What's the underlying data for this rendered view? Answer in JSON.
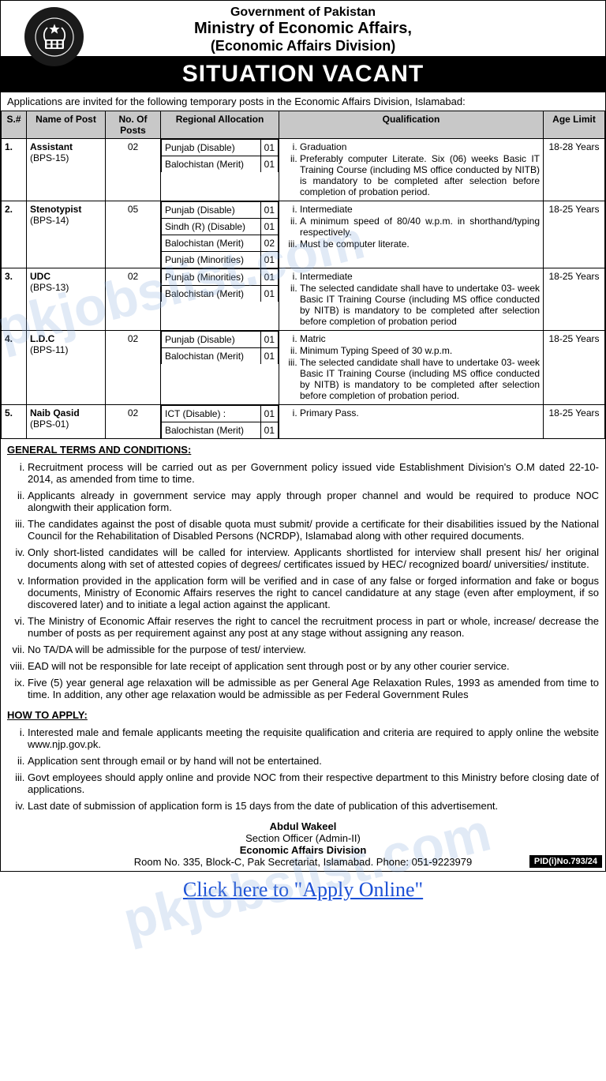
{
  "header": {
    "gov": "Government of Pakistan",
    "ministry": "Ministry of Economic Affairs,",
    "division": "(Economic Affairs Division)",
    "title": "SITUATION VACANT"
  },
  "intro": "Applications are invited for the following temporary posts in the Economic Affairs Division, Islamabad:",
  "columns": {
    "sn": "S.#",
    "name": "Name of Post",
    "num": "No. Of Posts",
    "alloc": "Regional Allocation",
    "qual": "Qualification",
    "age": "Age Limit"
  },
  "posts": [
    {
      "sn": "1.",
      "name": "Assistant",
      "bps": "(BPS-15)",
      "num": "02",
      "alloc": [
        {
          "region": "Punjab (Disable)",
          "n": "01"
        },
        {
          "region": "Balochistan (Merit)",
          "n": "01"
        }
      ],
      "qual": [
        "Graduation",
        "Preferably computer Literate.\nSix (06) weeks Basic IT Training Course (including MS office conducted by NITB) is mandatory to be completed after selection before completion of probation period."
      ],
      "age": "18-28 Years"
    },
    {
      "sn": "2.",
      "name": "Stenotypist",
      "bps": "(BPS-14)",
      "num": "05",
      "alloc": [
        {
          "region": "Punjab (Disable)",
          "n": "01"
        },
        {
          "region": "Sindh (R) (Disable)",
          "n": "01"
        },
        {
          "region": "Balochistan (Merit)",
          "n": "02"
        },
        {
          "region": "Punjab (Minorities)",
          "n": "01"
        }
      ],
      "qual": [
        "Intermediate",
        "A minimum speed of 80/40 w.p.m. in shorthand/typing respectively.",
        "Must be computer literate."
      ],
      "age": "18-25 Years"
    },
    {
      "sn": "3.",
      "name": "UDC",
      "bps": "(BPS-13)",
      "num": "02",
      "alloc": [
        {
          "region": "Punjab (Minorities)",
          "n": "01"
        },
        {
          "region": "Balochistan (Merit)",
          "n": "01"
        }
      ],
      "qual": [
        "Intermediate",
        "The selected candidate shall have to undertake 03- week Basic IT Training Course (including MS office conducted by NITB) is mandatory to be completed after selection before completion of probation period"
      ],
      "age": "18-25 Years"
    },
    {
      "sn": "4.",
      "name": "L.D.C",
      "bps": "(BPS-11)",
      "num": "02",
      "alloc": [
        {
          "region": "Punjab (Disable)",
          "n": "01"
        },
        {
          "region": "Balochistan (Merit)",
          "n": "01"
        }
      ],
      "qual": [
        "Matric",
        "Minimum Typing Speed of 30 w.p.m.",
        "The selected candidate shall have to undertake 03- week Basic IT Training Course (including MS office conducted by NITB) is mandatory to be completed after selection before completion of probation period."
      ],
      "age": "18-25 Years"
    },
    {
      "sn": "5.",
      "name": "Naib Qasid",
      "bps": "(BPS-01)",
      "num": "02",
      "alloc": [
        {
          "region": "ICT (Disable) :",
          "n": "01"
        },
        {
          "region": "Balochistan (Merit)",
          "n": "01"
        }
      ],
      "qual": [
        "Primary Pass."
      ],
      "age": "18-25 Years"
    }
  ],
  "terms_heading": "GENERAL TERMS AND CONDITIONS:",
  "terms": [
    "Recruitment process will be carried out as per Government policy issued vide Establishment Division's O.M dated 22-10-2014, as amended from time to time.",
    "Applicants already in government service may apply through proper channel and would be required to produce NOC alongwith their application form.",
    "The candidates against the post of disable quota must submit/ provide a certificate for their disabilities issued by the National Council for the Rehabilitation of Disabled Persons (NCRDP), Islamabad along with other required documents.",
    "Only short-listed candidates will be called for interview.  Applicants shortlisted for interview shall present his/ her original documents along with set of attested copies of degrees/ certificates issued by HEC/ recognized board/ universities/ institute.",
    "Information provided in the application form will be verified and in case of any false or forged information and fake or bogus documents, Ministry of Economic Affairs reserves the right to cancel candidature at any stage (even after employment, if so discovered later) and to initiate a legal action against the applicant.",
    "The Ministry of Economic Affair reserves the right to cancel the recruitment process in part or whole, increase/ decrease the number of posts as per requirement against any post at any stage without assigning any reason.",
    "No TA/DA will be admissible for the purpose of test/ interview.",
    "EAD will not be responsible for late receipt of application sent through post or by any other courier service.",
    "Five (5) year general age relaxation will be admissible as per General Age Relaxation Rules, 1993 as amended from time to time. In addition, any other age relaxation would be admissible as per Federal Government Rules"
  ],
  "apply_heading": "HOW TO APPLY:",
  "apply": [
    "Interested male and female applicants meeting the requisite qualification and criteria are required to apply online the website www.njp.gov.pk.",
    "Application sent through email or by hand will not be entertained.",
    "Govt employees should apply online and provide NOC from their respective department to this Ministry before closing date of applications.",
    "Last date of submission of application form is 15 days from the date of publication of this advertisement."
  ],
  "footer": {
    "name": "Abdul Wakeel",
    "role": "Section Officer (Admin-II)",
    "div": "Economic Affairs Division",
    "addr": "Room No. 335, Block-C, Pak Secretariat, Islamabad. Phone: 051-9223979",
    "pid": "PID(i)No.793/24"
  },
  "link": "Click here to \"Apply Online\"",
  "watermark": "pkjobslist.com"
}
